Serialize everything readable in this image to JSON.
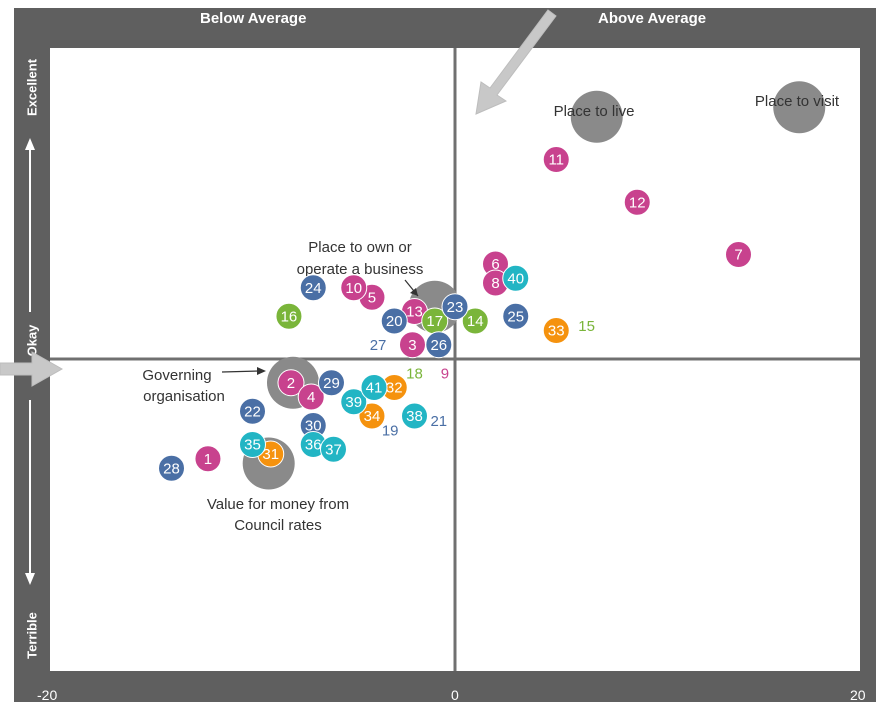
{
  "chart_data": {
    "type": "scatter",
    "title": "",
    "xlim": [
      -20,
      20
    ],
    "x_ticks": [
      "-20",
      "0",
      "20"
    ],
    "top_labels": {
      "left": "Below Average",
      "right": "Above Average"
    },
    "y_labels": {
      "top": "Excellent",
      "middle": "Okay",
      "bottom": "Terrible"
    },
    "colors": {
      "blue": "#4a6fa5",
      "pink": "#c8428e",
      "green": "#7ab53a",
      "teal": "#22b5c4",
      "orange": "#f5920e",
      "grey": "#8a8a8a"
    },
    "big_markers": [
      {
        "label": "Place to live",
        "x": 7,
        "y": 5.1
      },
      {
        "label": "Place to visit",
        "x": 17,
        "y": 5.3
      },
      {
        "label": "Place to own or operate a business",
        "x": -1,
        "y": 1.1
      },
      {
        "label": "Governing organisation",
        "x": -8,
        "y": -0.5
      },
      {
        "label": "Value for money from Council rates",
        "x": -9.2,
        "y": -2.2
      }
    ],
    "points": [
      {
        "id": "1",
        "x": -12.2,
        "y": -2.1,
        "color": "pink",
        "style": "dot"
      },
      {
        "id": "2",
        "x": -8.1,
        "y": -0.5,
        "color": "pink",
        "style": "dot"
      },
      {
        "id": "3",
        "x": -2.1,
        "y": 0.3,
        "color": "pink",
        "style": "dot"
      },
      {
        "id": "4",
        "x": -7.1,
        "y": -0.8,
        "color": "pink",
        "style": "dot"
      },
      {
        "id": "5",
        "x": -4.1,
        "y": 1.3,
        "color": "pink",
        "style": "dot"
      },
      {
        "id": "6",
        "x": 2,
        "y": 2.0,
        "color": "pink",
        "style": "dot"
      },
      {
        "id": "7",
        "x": 14,
        "y": 2.2,
        "color": "pink",
        "style": "dot"
      },
      {
        "id": "8",
        "x": 2,
        "y": 1.6,
        "color": "pink",
        "style": "dot"
      },
      {
        "id": "9",
        "x": -0.5,
        "y": -0.3,
        "color": "pink",
        "style": "text"
      },
      {
        "id": "10",
        "x": -5,
        "y": 1.5,
        "color": "pink",
        "style": "dot"
      },
      {
        "id": "11",
        "x": 5,
        "y": 4.2,
        "color": "pink",
        "style": "dot"
      },
      {
        "id": "12",
        "x": 9,
        "y": 3.3,
        "color": "pink",
        "style": "dot"
      },
      {
        "id": "13",
        "x": -2,
        "y": 1.0,
        "color": "pink",
        "style": "dot"
      },
      {
        "id": "14",
        "x": 1,
        "y": 0.8,
        "color": "green",
        "style": "dot"
      },
      {
        "id": "15",
        "x": 6.5,
        "y": 0.7,
        "color": "green",
        "style": "text"
      },
      {
        "id": "16",
        "x": -8.2,
        "y": 0.9,
        "color": "green",
        "style": "dot"
      },
      {
        "id": "17",
        "x": -1,
        "y": 0.8,
        "color": "green",
        "style": "dot"
      },
      {
        "id": "18",
        "x": -2,
        "y": -0.3,
        "color": "green",
        "style": "text"
      },
      {
        "id": "19",
        "x": -3.2,
        "y": -1.5,
        "color": "blue",
        "style": "text"
      },
      {
        "id": "20",
        "x": -3,
        "y": 0.8,
        "color": "blue",
        "style": "dot"
      },
      {
        "id": "21",
        "x": -0.8,
        "y": -1.3,
        "color": "blue",
        "style": "text"
      },
      {
        "id": "22",
        "x": -10,
        "y": -1.1,
        "color": "blue",
        "style": "dot"
      },
      {
        "id": "23",
        "x": 0,
        "y": 1.1,
        "color": "blue",
        "style": "dot"
      },
      {
        "id": "24",
        "x": -7,
        "y": 1.5,
        "color": "blue",
        "style": "dot"
      },
      {
        "id": "25",
        "x": 3,
        "y": 0.9,
        "color": "blue",
        "style": "dot"
      },
      {
        "id": "26",
        "x": -0.8,
        "y": 0.3,
        "color": "blue",
        "style": "dot"
      },
      {
        "id": "27",
        "x": -3.8,
        "y": 0.3,
        "color": "blue",
        "style": "text"
      },
      {
        "id": "28",
        "x": -14,
        "y": -2.3,
        "color": "blue",
        "style": "dot"
      },
      {
        "id": "29",
        "x": -6.1,
        "y": -0.5,
        "color": "blue",
        "style": "dot"
      },
      {
        "id": "30",
        "x": -7,
        "y": -1.4,
        "color": "blue",
        "style": "dot"
      },
      {
        "id": "31",
        "x": -9.1,
        "y": -2.0,
        "color": "orange",
        "style": "dot"
      },
      {
        "id": "32",
        "x": -3,
        "y": -0.6,
        "color": "orange",
        "style": "dot"
      },
      {
        "id": "33",
        "x": 5,
        "y": 0.6,
        "color": "orange",
        "style": "dot"
      },
      {
        "id": "34",
        "x": -4.1,
        "y": -1.2,
        "color": "orange",
        "style": "dot"
      },
      {
        "id": "35",
        "x": -10,
        "y": -1.8,
        "color": "teal",
        "style": "dot"
      },
      {
        "id": "36",
        "x": -7,
        "y": -1.8,
        "color": "teal",
        "style": "dot"
      },
      {
        "id": "37",
        "x": -6,
        "y": -1.9,
        "color": "teal",
        "style": "dot"
      },
      {
        "id": "38",
        "x": -2,
        "y": -1.2,
        "color": "teal",
        "style": "dot"
      },
      {
        "id": "39",
        "x": -5,
        "y": -0.9,
        "color": "teal",
        "style": "dot"
      },
      {
        "id": "40",
        "x": 3,
        "y": 1.7,
        "color": "teal",
        "style": "dot"
      },
      {
        "id": "41",
        "x": -4,
        "y": -0.6,
        "color": "teal",
        "style": "dot"
      }
    ]
  }
}
